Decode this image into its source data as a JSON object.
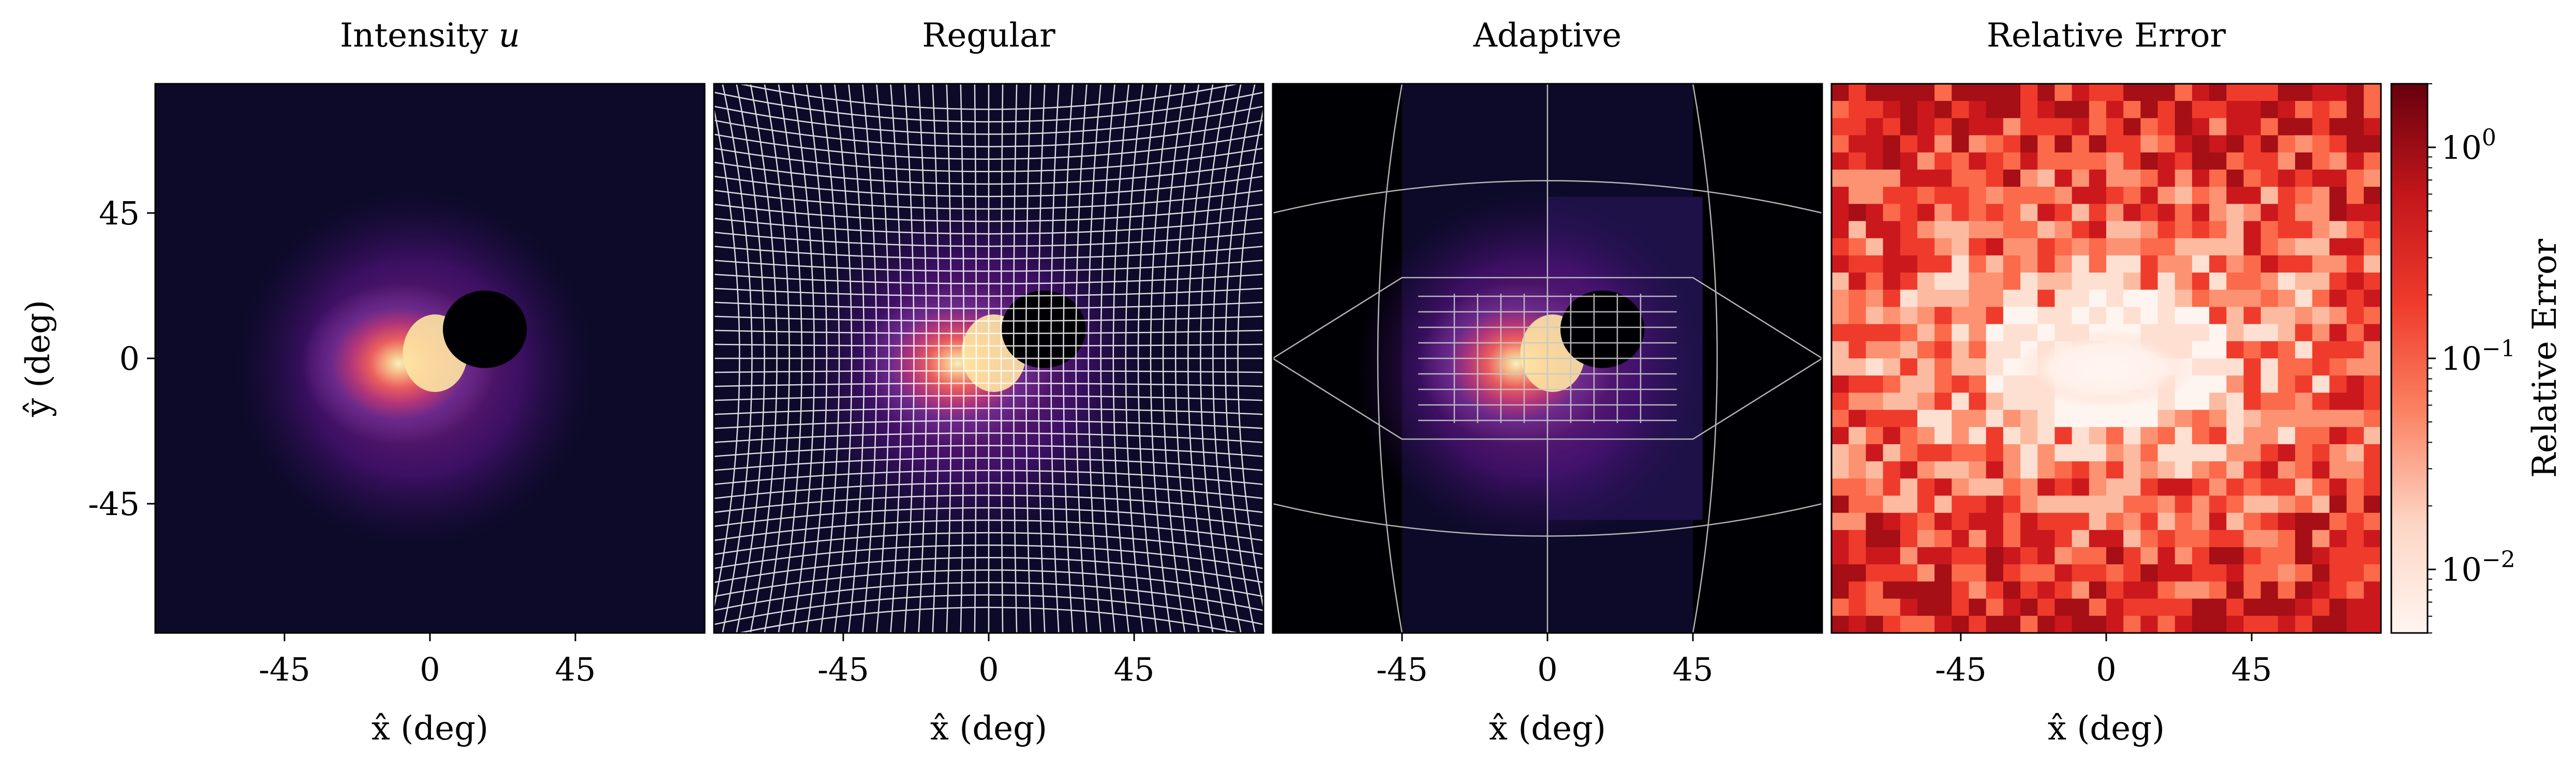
{
  "chart_data": [
    {
      "type": "heatmap",
      "title": "Intensity u",
      "title_parts": {
        "text": "Intensity ",
        "var": "u"
      },
      "xlabel": "x̂ (deg)",
      "ylabel": "ŷ (deg)",
      "xlim": [
        -85,
        85
      ],
      "ylim": [
        -85,
        85
      ],
      "x_ticks": [
        "-45",
        "0",
        "45"
      ],
      "y_ticks": [
        "45",
        "0",
        "-45"
      ],
      "x_tick_values": [
        -45,
        0,
        45
      ],
      "y_tick_values": [
        45,
        0,
        -45
      ],
      "colormap": "magma",
      "features": "Bright core near (0,0); dark hole near (15,10); purple lobes extending to about ±45 deg"
    },
    {
      "type": "heatmap",
      "title": "Regular",
      "xlabel": "x̂ (deg)",
      "xlim": [
        -85,
        85
      ],
      "ylim": [
        -85,
        85
      ],
      "x_ticks": [
        "-45",
        "0",
        "45"
      ],
      "x_tick_values": [
        -45,
        0,
        45
      ],
      "colormap": "magma",
      "grid": "regular cubed-sphere mesh (white lines)"
    },
    {
      "type": "heatmap",
      "title": "Adaptive",
      "xlabel": "x̂ (deg)",
      "xlim": [
        -85,
        85
      ],
      "ylim": [
        -85,
        85
      ],
      "x_ticks": [
        "-45",
        "0",
        "45"
      ],
      "x_tick_values": [
        -45,
        0,
        45
      ],
      "colormap": "magma",
      "grid": "adaptively refined mesh (grey lines)"
    },
    {
      "type": "heatmap",
      "title": "Relative Error",
      "xlabel": "x̂ (deg)",
      "xlim": [
        -85,
        85
      ],
      "ylim": [
        -85,
        85
      ],
      "x_ticks": [
        "-45",
        "0",
        "45"
      ],
      "x_tick_values": [
        -45,
        0,
        45
      ],
      "colormap": "Reds",
      "colorbar": {
        "label": "Relative Error",
        "scale": "log",
        "range": [
          0.005,
          2
        ],
        "ticks": [
          {
            "base": "10",
            "exp": "0",
            "value": 1
          },
          {
            "base": "10",
            "exp": "−1",
            "value": 0.1
          },
          {
            "base": "10",
            "exp": "−2",
            "value": 0.01
          }
        ]
      }
    }
  ],
  "colors": {
    "magma_bg": "#0d0a29",
    "magma_purple": "#6b2a8c",
    "magma_core": "#fec287",
    "reds_low": "#fff5f0",
    "reds_mid": "#ef3b2c",
    "reds_high": "#67000d"
  }
}
